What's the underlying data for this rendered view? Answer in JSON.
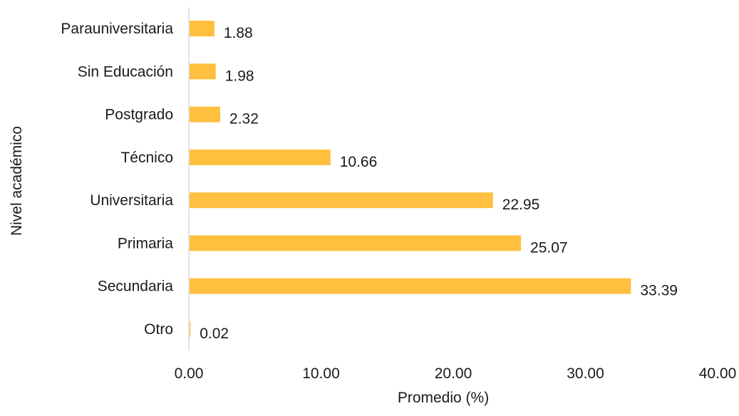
{
  "chart_data": {
    "type": "bar",
    "orientation": "horizontal",
    "categories": [
      "Parauniversitaria",
      "Sin Educación",
      "Postgrado",
      "Técnico",
      "Universitaria",
      "Primaria",
      "Secundaria",
      "Otro"
    ],
    "values": [
      1.88,
      1.98,
      2.32,
      10.66,
      22.95,
      25.07,
      33.39,
      0.02
    ],
    "value_labels": [
      "1.88",
      "1.98",
      "2.32",
      "10.66",
      "22.95",
      "25.07",
      "33.39",
      "0.02"
    ],
    "xlabel": "Promedio (%)",
    "ylabel": "Nivel académico",
    "xlim": [
      0,
      40
    ],
    "x_ticks": [
      0,
      10,
      20,
      30,
      40
    ],
    "x_tick_labels": [
      "0.00",
      "10.00",
      "20.00",
      "30.00",
      "40.00"
    ],
    "grid": false,
    "legend": "none",
    "bar_color": "#FFBF3F",
    "axis_color": "#D9D9D9"
  }
}
